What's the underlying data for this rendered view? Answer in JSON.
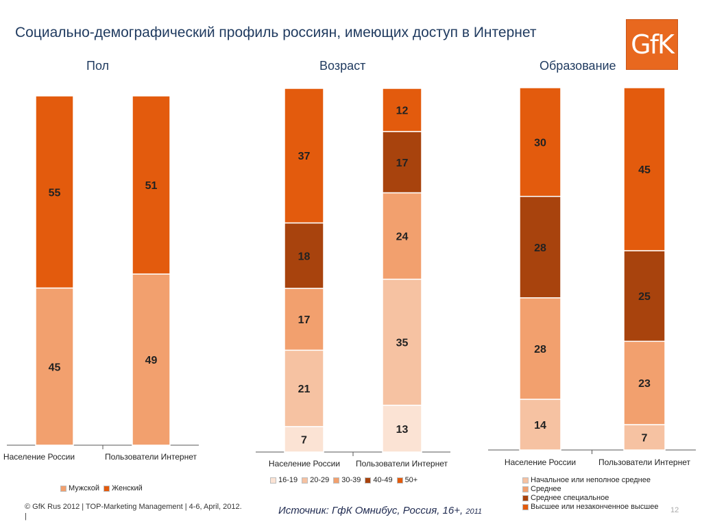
{
  "title": "Социально-демографический профиль россиян, имеющих доступ в Интернет",
  "logo_text": "GfK",
  "colors": {
    "orange": "#e35b0d",
    "light_orange": "#f2a06e",
    "pale_orange": "#f6c2a2",
    "very_pale": "#fbe3d4",
    "brown": "#a8430d"
  },
  "chart_data": [
    {
      "type": "bar",
      "stacked": true,
      "title": "Пол",
      "categories": [
        "Население России",
        "Пользователи Интернет"
      ],
      "series": [
        {
          "name": "Мужской",
          "color": "#f2a06e",
          "values": [
            45,
            49
          ]
        },
        {
          "name": "Женский",
          "color": "#e35b0d",
          "values": [
            55,
            51
          ]
        }
      ],
      "ylim": [
        0,
        100
      ],
      "legend": "bottom"
    },
    {
      "type": "bar",
      "stacked": true,
      "title": "Возраст",
      "categories": [
        "Население России",
        "Пользователи Интернет"
      ],
      "series": [
        {
          "name": "16-19",
          "color": "#fbe3d4",
          "values": [
            7,
            13
          ]
        },
        {
          "name": "20-29",
          "color": "#f6c2a2",
          "values": [
            21,
            35
          ]
        },
        {
          "name": "30-39",
          "color": "#f2a06e",
          "values": [
            17,
            24
          ]
        },
        {
          "name": "40-49",
          "color": "#a8430d",
          "values": [
            18,
            17
          ]
        },
        {
          "name": "50+",
          "color": "#e35b0d",
          "values": [
            37,
            12
          ]
        }
      ],
      "ylim": [
        0,
        100
      ],
      "legend": "bottom"
    },
    {
      "type": "bar",
      "stacked": true,
      "title": "Образование",
      "categories": [
        "Население России",
        "Пользователи Интернет"
      ],
      "series": [
        {
          "name": "Начальное или неполное среднее",
          "color": "#f6c2a2",
          "values": [
            14,
            7
          ]
        },
        {
          "name": "Среднее",
          "color": "#f2a06e",
          "values": [
            28,
            23
          ]
        },
        {
          "name": "Среднее специальное",
          "color": "#a8430d",
          "values": [
            28,
            25
          ]
        },
        {
          "name": "Высшее или незаконченное высшее",
          "color": "#e35b0d",
          "values": [
            30,
            45
          ]
        }
      ],
      "ylim": [
        0,
        100
      ],
      "legend": "bottom"
    }
  ],
  "footer": "© GfK  Rus 2012 | TOP-Marketing Management | 4-6, April, 2012.",
  "footer_tick": "|",
  "source_text": "Источник: ГфК Омнибус, Россия, 16+,",
  "source_year": "2011",
  "page_number": "12"
}
